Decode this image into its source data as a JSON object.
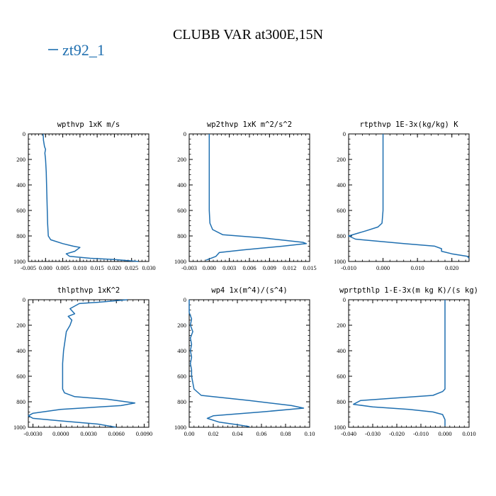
{
  "figure": {
    "title": "CLUBB VAR at300E,15N",
    "legend_label": "zt92_1",
    "line_color": "#1f6fb0"
  },
  "chart_data": [
    {
      "type": "line",
      "title": "wpthvp  1xK m/s",
      "xlim": [
        -0.005,
        0.03
      ],
      "ylim": [
        1000,
        0
      ],
      "xticks": [
        "-0.005",
        "0.000",
        "0.005",
        "0.010",
        "0.015",
        "0.020",
        "0.025",
        "0.030"
      ],
      "yticks": [
        "0",
        "200",
        "400",
        "600",
        "800",
        "1000"
      ],
      "series": [
        {
          "name": "zt92_1",
          "x": [
            -0.0007,
            -0.0006,
            -0.0003,
            0.0,
            -0.0002,
            0.0,
            0.0002,
            0.0003,
            0.0004,
            0.0005,
            0.0006,
            0.0008,
            0.0015,
            0.005,
            0.008,
            0.01,
            0.0085,
            0.006,
            0.007,
            0.013,
            0.02,
            0.027
          ],
          "y": [
            0,
            50,
            100,
            120,
            150,
            200,
            300,
            400,
            500,
            600,
            700,
            800,
            830,
            860,
            880,
            890,
            920,
            940,
            960,
            975,
            985,
            1000
          ]
        }
      ]
    },
    {
      "type": "line",
      "title": "wp2thvp  1xK m^2/s^2",
      "xlim": [
        -0.003,
        0.015
      ],
      "ylim": [
        1000,
        0
      ],
      "xticks": [
        "-0.003",
        "0.000",
        "0.003",
        "0.006",
        "0.009",
        "0.012",
        "0.015"
      ],
      "yticks": [
        "0",
        "200",
        "400",
        "600",
        "800",
        "1000"
      ],
      "series": [
        {
          "name": "zt92_1",
          "x": [
            0.0,
            0.0,
            0.0,
            0.0,
            0.0001,
            0.0005,
            0.002,
            0.008,
            0.014,
            0.0145,
            0.011,
            0.005,
            0.0015,
            0.001,
            0.0,
            -0.0005
          ],
          "y": [
            0,
            200,
            400,
            600,
            700,
            750,
            790,
            815,
            850,
            860,
            880,
            910,
            930,
            960,
            980,
            990
          ]
        }
      ]
    },
    {
      "type": "line",
      "title": "rtpthvp  1E-3x(kg/kg) K",
      "xlim": [
        -0.01,
        0.025
      ],
      "ylim": [
        1000,
        0
      ],
      "xticks": [
        "-0.010",
        "0.000",
        "0.010",
        "0.020"
      ],
      "yticks": [
        "0",
        "200",
        "400",
        "600",
        "800",
        "1000"
      ],
      "series": [
        {
          "name": "zt92_1",
          "x": [
            0.0,
            0.0,
            0.0,
            0.0,
            -0.0003,
            -0.0015,
            -0.005,
            -0.01,
            -0.008,
            0.006,
            0.015,
            0.017,
            0.017,
            0.02,
            0.0245,
            0.025
          ],
          "y": [
            0,
            200,
            400,
            600,
            700,
            730,
            760,
            800,
            825,
            860,
            880,
            900,
            920,
            940,
            960,
            975
          ]
        }
      ]
    },
    {
      "type": "line",
      "title": "thlpthvp  1xK^2",
      "xlim": [
        -0.0035,
        0.0095
      ],
      "ylim": [
        1000,
        0
      ],
      "xticks": [
        "-0.0030",
        "0.0000",
        "0.0030",
        "0.0060",
        "0.0090"
      ],
      "yticks": [
        "0",
        "200",
        "400",
        "600",
        "800",
        "1000"
      ],
      "series": [
        {
          "name": "zt92_1",
          "x": [
            0.0072,
            0.004,
            0.002,
            0.001,
            0.0015,
            0.0008,
            0.0012,
            0.001,
            0.0006,
            0.0005,
            0.0003,
            0.0002,
            0.0002,
            0.0002,
            0.0002,
            0.0004,
            0.0015,
            0.005,
            0.008,
            0.0065,
            0.0,
            -0.003,
            -0.0035,
            -0.003,
            0.0,
            0.004,
            0.006
          ],
          "y": [
            0,
            20,
            30,
            70,
            110,
            130,
            160,
            200,
            250,
            300,
            400,
            500,
            550,
            600,
            700,
            730,
            760,
            780,
            810,
            830,
            860,
            890,
            910,
            930,
            950,
            975,
            1000
          ]
        }
      ]
    },
    {
      "type": "line",
      "title": "wp4  1x(m^4)/(s^4)",
      "xlim": [
        0.0,
        0.1
      ],
      "ylim": [
        1000,
        0
      ],
      "xticks": [
        "0.00",
        "0.02",
        "0.04",
        "0.06",
        "0.08",
        "0.10"
      ],
      "yticks": [
        "0",
        "200",
        "400",
        "600",
        "800",
        "1000"
      ],
      "series": [
        {
          "name": "zt92_1",
          "x": [
            0.0,
            0.0,
            0.002,
            0.001,
            0.003,
            0.001,
            0.002,
            0.001,
            0.002,
            0.001,
            0.002,
            0.002,
            0.004,
            0.01,
            0.05,
            0.085,
            0.095,
            0.06,
            0.02,
            0.015,
            0.025,
            0.04,
            0.05
          ],
          "y": [
            0,
            100,
            150,
            200,
            250,
            300,
            350,
            400,
            450,
            500,
            550,
            600,
            700,
            750,
            790,
            830,
            850,
            880,
            910,
            930,
            960,
            980,
            995
          ]
        }
      ]
    },
    {
      "type": "line",
      "title": "wprtpthlp  1-E-3x(m kg K)/(s kg)",
      "xlim": [
        -0.04,
        0.01
      ],
      "ylim": [
        1000,
        0
      ],
      "xticks": [
        "-0.040",
        "-0.030",
        "-0.020",
        "-0.010",
        "0.000",
        "0.010"
      ],
      "yticks": [
        "0",
        "200",
        "400",
        "600",
        "800",
        "1000"
      ],
      "series": [
        {
          "name": "zt92_1",
          "x": [
            0.0,
            0.0,
            0.0,
            0.0,
            0.0,
            -0.001,
            -0.005,
            -0.02,
            -0.035,
            -0.038,
            -0.03,
            -0.015,
            -0.005,
            -0.001,
            0.0,
            0.0
          ],
          "y": [
            0,
            200,
            400,
            600,
            700,
            720,
            750,
            770,
            790,
            820,
            840,
            860,
            880,
            900,
            940,
            990
          ]
        }
      ]
    }
  ]
}
